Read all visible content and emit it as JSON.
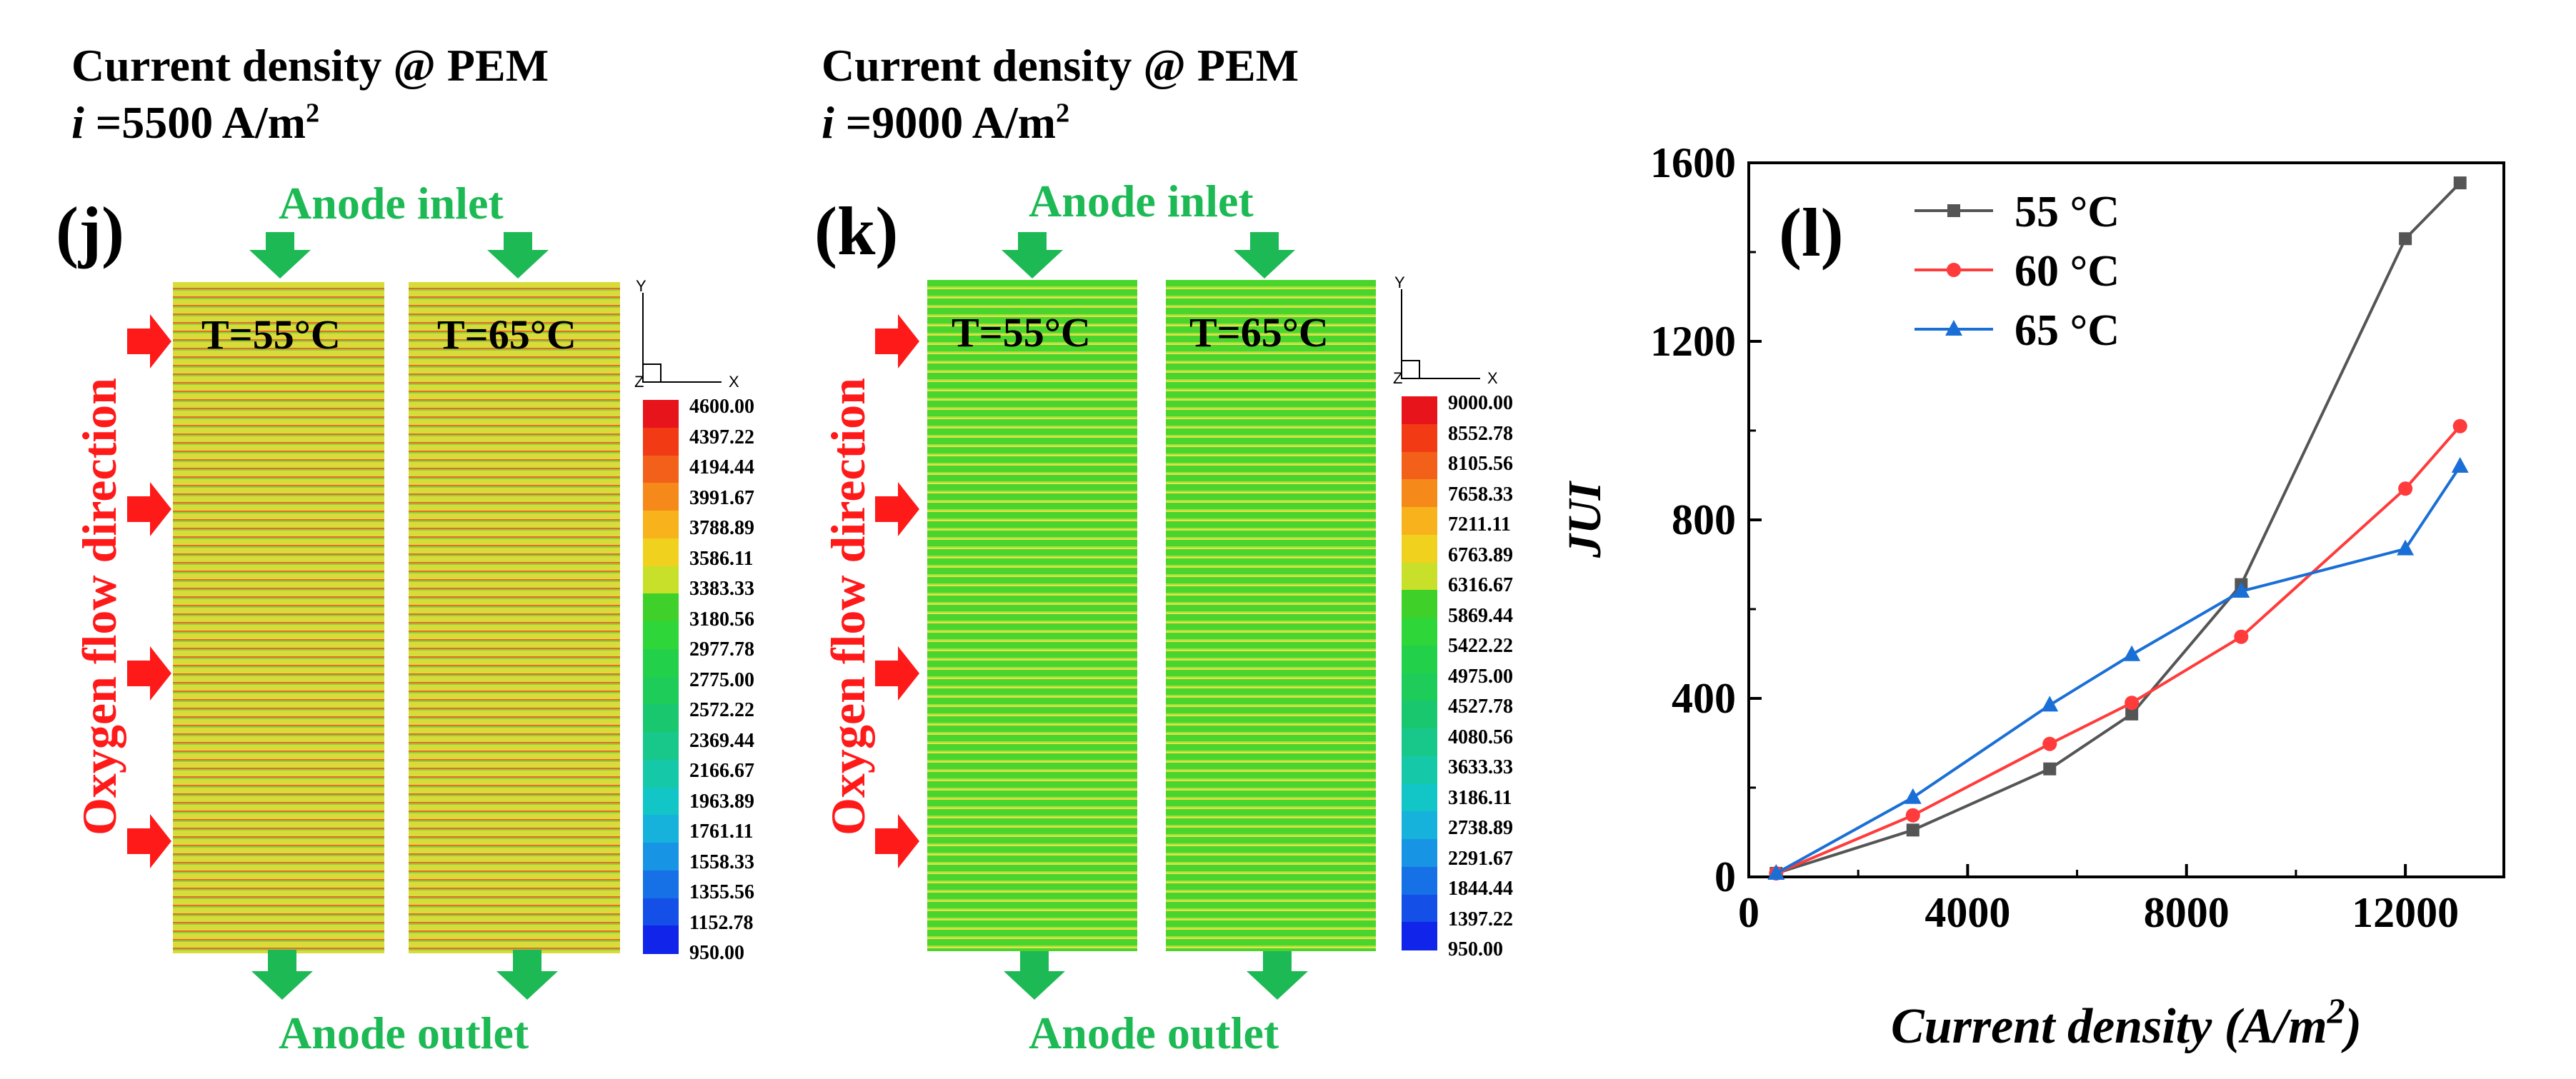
{
  "panel_j": {
    "letter": "(j)",
    "title_line1": "Current density @ PEM",
    "title_line2_prefix": "i",
    "title_line2_value": " =5500 A/m",
    "title_line2_sup": "2",
    "inlet": "Anode inlet",
    "outlet": "Anode outlet",
    "flow": "Oxygen flow direction",
    "temp_left": "T=55°C",
    "temp_right": "T=65°C",
    "colorbar": [
      "4600.00",
      "4397.22",
      "4194.44",
      "3991.67",
      "3788.89",
      "3586.11",
      "3383.33",
      "3180.56",
      "2977.78",
      "2775.00",
      "2572.22",
      "2369.44",
      "2166.67",
      "1963.89",
      "1761.11",
      "1558.33",
      "1355.56",
      "1152.78",
      "950.00"
    ]
  },
  "panel_k": {
    "letter": "(k)",
    "title_line1": "Current density @ PEM",
    "title_line2_prefix": "i",
    "title_line2_value": " =9000 A/m",
    "title_line2_sup": "2",
    "inlet": "Anode inlet",
    "outlet": "Anode outlet",
    "flow": "Oxygen flow direction",
    "temp_left": "T=55°C",
    "temp_right": "T=65°C",
    "colorbar": [
      "9000.00",
      "8552.78",
      "8105.56",
      "7658.33",
      "7211.11",
      "6763.89",
      "6316.67",
      "5869.44",
      "5422.22",
      "4975.00",
      "4527.78",
      "4080.56",
      "3633.33",
      "3186.11",
      "2738.89",
      "2291.67",
      "1844.44",
      "1397.22",
      "950.00"
    ]
  },
  "axis_triad": {
    "y": "Y",
    "x": "X",
    "z": "Z"
  },
  "colors": {
    "cb": [
      "#e8141c",
      "#f23a14",
      "#f2601a",
      "#f58a1a",
      "#f7b21c",
      "#f0d21e",
      "#c8e02a",
      "#3fd12a",
      "#2fd63a",
      "#22d04a",
      "#1ecc5a",
      "#19c76e",
      "#17c88a",
      "#15c9a8",
      "#12c6c8",
      "#16b2dc",
      "#1894e4",
      "#1670e6",
      "#1450e8",
      "#1024ea"
    ],
    "s55": "#555555",
    "s60": "#ff3b3b",
    "s65": "#1a6fd6"
  },
  "chart_data": {
    "type": "line",
    "panel_letter": "(l)",
    "title": "",
    "xlabel": "Current density (A/m",
    "xlabel_sup": "2",
    "xlabel_close": ")",
    "ylabel": "JUI",
    "xlim": [
      0,
      13800
    ],
    "ylim": [
      0,
      1600
    ],
    "xticks": [
      0,
      4000,
      8000,
      12000
    ],
    "yticks": [
      0,
      400,
      800,
      1200,
      1600
    ],
    "xtick_labels": [
      "0",
      "4000",
      "8000",
      "12000"
    ],
    "ytick_labels": [
      "0",
      "400",
      "800",
      "1200",
      "1600"
    ],
    "legend_position": "top-left",
    "series": [
      {
        "name": "55 °C",
        "marker": "square",
        "x": [
          500,
          3000,
          5500,
          7000,
          9000,
          12000,
          13000
        ],
        "y": [
          8,
          105,
          242,
          365,
          655,
          1430,
          1555
        ]
      },
      {
        "name": "60 °C",
        "marker": "circle",
        "x": [
          500,
          3000,
          5500,
          7000,
          9000,
          12000,
          13000
        ],
        "y": [
          8,
          138,
          298,
          390,
          538,
          870,
          1010
        ]
      },
      {
        "name": "65 °C",
        "marker": "triangle",
        "x": [
          500,
          3000,
          5500,
          7000,
          9000,
          12000,
          13000
        ],
        "y": [
          8,
          178,
          385,
          498,
          640,
          735,
          920
        ]
      }
    ]
  }
}
